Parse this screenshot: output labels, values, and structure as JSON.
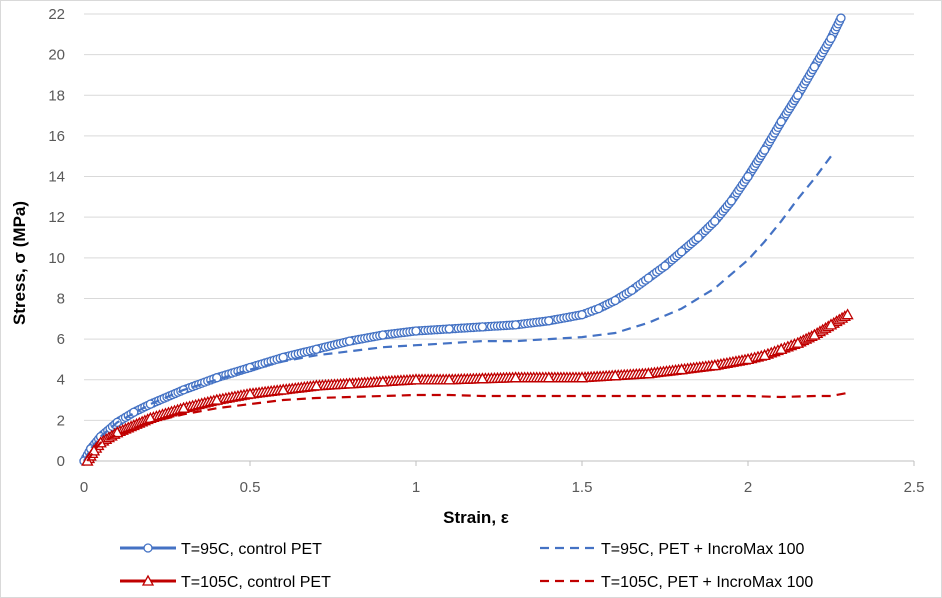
{
  "chart_data": {
    "type": "line",
    "title": "",
    "xlabel": "Strain, ε",
    "ylabel": "Stress, σ (MPa)",
    "xlim": [
      0,
      2.5
    ],
    "ylim": [
      0,
      22
    ],
    "xticks": [
      0,
      0.5,
      1,
      1.5,
      2,
      2.5
    ],
    "xtick_labels": [
      "0",
      "0.5",
      "1",
      "1.5",
      "2",
      "2.5"
    ],
    "yticks": [
      0,
      2,
      4,
      6,
      8,
      10,
      12,
      14,
      16,
      18,
      20,
      22
    ],
    "ytick_labels": [
      "0",
      "2",
      "4",
      "6",
      "8",
      "10",
      "12",
      "14",
      "16",
      "18",
      "20",
      "22"
    ],
    "grid": {
      "horizontal": true,
      "vertical": false
    },
    "legend_position": "bottom",
    "series": [
      {
        "name": "T=95C, control PET",
        "color": "#4472c4",
        "style": "solid",
        "marker": "circle",
        "x": [
          0.0,
          0.02,
          0.05,
          0.1,
          0.15,
          0.2,
          0.3,
          0.4,
          0.5,
          0.6,
          0.7,
          0.8,
          0.9,
          1.0,
          1.1,
          1.2,
          1.3,
          1.4,
          1.5,
          1.55,
          1.6,
          1.65,
          1.7,
          1.75,
          1.8,
          1.85,
          1.9,
          1.95,
          2.0,
          2.05,
          2.1,
          2.15,
          2.2,
          2.25,
          2.28
        ],
        "y": [
          0.0,
          0.6,
          1.2,
          1.9,
          2.4,
          2.8,
          3.5,
          4.1,
          4.6,
          5.1,
          5.5,
          5.9,
          6.2,
          6.4,
          6.5,
          6.6,
          6.7,
          6.9,
          7.2,
          7.5,
          7.9,
          8.4,
          9.0,
          9.6,
          10.3,
          11.0,
          11.8,
          12.8,
          14.0,
          15.3,
          16.7,
          18.0,
          19.4,
          20.8,
          21.8
        ]
      },
      {
        "name": "T=95C, PET + IncroMax 100",
        "color": "#4472c4",
        "style": "dashed",
        "marker": "none",
        "x": [
          0.0,
          0.02,
          0.05,
          0.1,
          0.2,
          0.3,
          0.4,
          0.5,
          0.6,
          0.7,
          0.8,
          0.9,
          1.0,
          1.1,
          1.2,
          1.3,
          1.4,
          1.5,
          1.6,
          1.7,
          1.8,
          1.9,
          2.0,
          2.05,
          2.1,
          2.15,
          2.2,
          2.25
        ],
        "y": [
          0.0,
          0.6,
          1.2,
          1.9,
          2.8,
          3.5,
          4.0,
          4.5,
          4.9,
          5.2,
          5.4,
          5.6,
          5.7,
          5.8,
          5.9,
          5.9,
          6.0,
          6.1,
          6.3,
          6.8,
          7.5,
          8.5,
          9.9,
          10.8,
          11.8,
          12.9,
          13.9,
          15.0
        ]
      },
      {
        "name": "T=105C, control PET",
        "color": "#c00000",
        "style": "solid",
        "marker": "triangle",
        "x": [
          0.01,
          0.03,
          0.05,
          0.1,
          0.2,
          0.3,
          0.4,
          0.5,
          0.6,
          0.7,
          0.8,
          0.9,
          1.0,
          1.1,
          1.2,
          1.3,
          1.4,
          1.5,
          1.6,
          1.7,
          1.8,
          1.9,
          2.0,
          2.05,
          2.1,
          2.15,
          2.2,
          2.25,
          2.3
        ],
        "y": [
          0.0,
          0.5,
          0.9,
          1.4,
          2.1,
          2.6,
          3.0,
          3.3,
          3.5,
          3.7,
          3.8,
          3.9,
          4.0,
          4.0,
          4.05,
          4.1,
          4.1,
          4.1,
          4.2,
          4.3,
          4.5,
          4.7,
          5.0,
          5.2,
          5.5,
          5.8,
          6.2,
          6.7,
          7.2
        ]
      },
      {
        "name": "T=105C, PET + IncroMax 100",
        "color": "#c00000",
        "style": "dashed",
        "marker": "none",
        "x": [
          0.01,
          0.03,
          0.05,
          0.1,
          0.2,
          0.3,
          0.4,
          0.5,
          0.6,
          0.7,
          0.8,
          0.9,
          1.0,
          1.1,
          1.2,
          1.3,
          1.4,
          1.5,
          1.6,
          1.7,
          1.8,
          1.9,
          2.0,
          2.1,
          2.2,
          2.25,
          2.3
        ],
        "y": [
          0.0,
          0.5,
          0.9,
          1.3,
          1.9,
          2.3,
          2.6,
          2.8,
          3.0,
          3.1,
          3.15,
          3.2,
          3.25,
          3.25,
          3.2,
          3.2,
          3.2,
          3.2,
          3.2,
          3.2,
          3.2,
          3.2,
          3.2,
          3.15,
          3.2,
          3.2,
          3.35
        ]
      }
    ]
  }
}
